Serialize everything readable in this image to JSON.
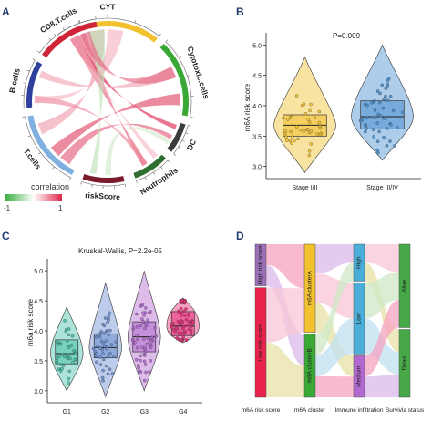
{
  "panels": {
    "A": {
      "letter": "A",
      "sectors": [
        {
          "label": "CYT",
          "color": "#f2c12e"
        },
        {
          "label": "Cytotoxic.cells",
          "color": "#3aa835"
        },
        {
          "label": "DC",
          "color": "#3b3b3b"
        },
        {
          "label": "Neutrophils",
          "color": "#2e6e2e"
        },
        {
          "label": "riskScore",
          "color": "#7a1a2a"
        },
        {
          "label": "T.cells",
          "color": "#7fb0e0"
        },
        {
          "label": "B.cells",
          "color": "#2e3f9e"
        },
        {
          "label": "CD8.T.cells",
          "color": "#d0243a"
        }
      ],
      "legend_title": "correlation",
      "legend_min": "-1",
      "legend_max": "1",
      "legend_colors": [
        "#3cb043",
        "#ffffff",
        "#e0244a"
      ]
    },
    "B": {
      "letter": "B",
      "chart_data": {
        "type": "violin-box",
        "ylabel": "m6A risk score",
        "ylim": [
          2.8,
          5.2
        ],
        "yticks": [
          "3.0",
          "3.5",
          "4.0",
          "4.5",
          "5.0"
        ],
        "categories": [
          "Stage I/II",
          "Stage III/IV"
        ],
        "annotation": "P=0.009",
        "series": [
          {
            "median": 3.68,
            "q1": 3.5,
            "q3": 3.85,
            "min": 2.9,
            "max": 4.8,
            "color": "#f2c12e"
          },
          {
            "median": 3.82,
            "q1": 3.62,
            "q3": 4.08,
            "min": 3.1,
            "max": 5.0,
            "color": "#4a90d0"
          }
        ]
      }
    },
    "C": {
      "letter": "C",
      "chart_data": {
        "type": "violin-box",
        "title": "Kruskal-Wallis, P=2.2e-05",
        "ylabel": "m6a risk score",
        "ylim": [
          2.8,
          5.2
        ],
        "yticks": [
          "3.0",
          "3.5",
          "4.0",
          "4.5",
          "5.0"
        ],
        "categories": [
          "G1",
          "G2",
          "G3",
          "G4"
        ],
        "series": [
          {
            "median": 3.62,
            "q1": 3.45,
            "q3": 3.85,
            "min": 3.0,
            "max": 4.4,
            "color": "#49c2a8"
          },
          {
            "median": 3.72,
            "q1": 3.55,
            "q3": 3.95,
            "min": 2.9,
            "max": 4.8,
            "color": "#6a8fd0"
          },
          {
            "median": 3.9,
            "q1": 3.65,
            "q3": 4.15,
            "min": 3.0,
            "max": 5.0,
            "color": "#b36ad0"
          },
          {
            "median": 4.08,
            "q1": 3.92,
            "q3": 4.32,
            "min": 3.8,
            "max": 4.55,
            "color": "#e8307a"
          }
        ]
      }
    },
    "D": {
      "letter": "D",
      "axes": [
        "m6A risk score",
        "m6A cluster",
        "Immune infiltration",
        "Survivla status"
      ],
      "nodes": [
        [
          "High risk score",
          "Low risk score"
        ],
        [
          "m6A clusterA",
          "m6A clusterB"
        ],
        [
          "High",
          "Low",
          "Medium"
        ],
        [
          "Alive",
          "Dead"
        ]
      ],
      "node_colors": [
        [
          "#9b6fb8",
          "#e8224a"
        ],
        [
          "#f2c12e",
          "#3aa835"
        ],
        [
          "#4aaed8",
          "#4aaed8",
          "#b36ad0"
        ],
        [
          "#46a846",
          "#46a846"
        ]
      ]
    }
  }
}
